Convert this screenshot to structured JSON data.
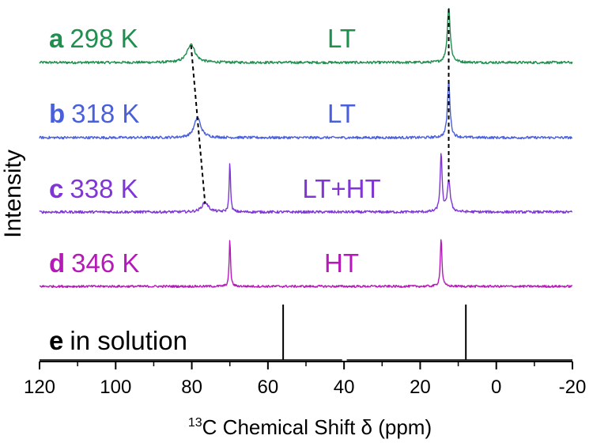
{
  "chart_data": {
    "type": "line",
    "title": "",
    "xlabel_superscript": "13",
    "xlabel_main": "C Chemical Shift δ (ppm)",
    "ylabel": "Intensity",
    "xlim": [
      120,
      -20
    ],
    "x_ticks": [
      120,
      100,
      80,
      60,
      40,
      20,
      0,
      -20
    ],
    "x_tick_labels": [
      "120",
      "100",
      "80",
      "60",
      "40",
      "20",
      "0",
      "-20"
    ],
    "x_minor_tick_step": 10,
    "y_ticks": false,
    "series": [
      {
        "id": "a",
        "letter": "a",
        "temperature": "298 K",
        "phase": "LT",
        "color": "#1f8f4e",
        "peaks": [
          {
            "position_ppm": 80.2,
            "relative_height": 0.34,
            "width_ppm": 1.2
          },
          {
            "position_ppm": 12.5,
            "relative_height": 1.0,
            "width_ppm": 0.45
          }
        ]
      },
      {
        "id": "b",
        "letter": "b",
        "temperature": "318 K",
        "phase": "LT",
        "color": "#4a5fdc",
        "peaks": [
          {
            "position_ppm": 78.5,
            "relative_height": 0.36,
            "width_ppm": 1.0
          },
          {
            "position_ppm": 12.5,
            "relative_height": 1.0,
            "width_ppm": 0.4
          }
        ]
      },
      {
        "id": "c",
        "letter": "c",
        "temperature": "338 K",
        "phase": "LT+HT",
        "color": "#8035d6",
        "peaks": [
          {
            "position_ppm": 76.5,
            "relative_height": 0.17,
            "width_ppm": 1.0
          },
          {
            "position_ppm": 70.0,
            "relative_height": 0.9,
            "width_ppm": 0.2
          },
          {
            "position_ppm": 14.5,
            "relative_height": 1.0,
            "width_ppm": 0.3
          },
          {
            "position_ppm": 12.5,
            "relative_height": 0.55,
            "width_ppm": 0.45
          }
        ]
      },
      {
        "id": "d",
        "letter": "d",
        "temperature": "346 K",
        "phase": "HT",
        "color": "#b51ab8",
        "peaks": [
          {
            "position_ppm": 70.0,
            "relative_height": 1.0,
            "width_ppm": 0.2
          },
          {
            "position_ppm": 14.5,
            "relative_height": 1.0,
            "width_ppm": 0.25
          }
        ]
      },
      {
        "id": "e",
        "letter": "e",
        "label": "in solution",
        "color": "#000000",
        "lines_ppm": [
          56.0,
          8.0
        ],
        "baseline_break_ppm": [
          40.5,
          39.3
        ]
      }
    ],
    "guide_lines": [
      {
        "style": "dashed",
        "points": [
          {
            "trace": "a",
            "ppm": 80.2
          },
          {
            "trace": "b",
            "ppm": 78.5
          },
          {
            "trace": "c",
            "ppm": 76.5
          }
        ]
      },
      {
        "style": "dashed",
        "points": [
          {
            "trace": "a",
            "ppm": 12.5
          },
          {
            "trace": "b",
            "ppm": 12.5
          },
          {
            "trace": "c",
            "ppm": 12.5
          }
        ]
      }
    ]
  }
}
